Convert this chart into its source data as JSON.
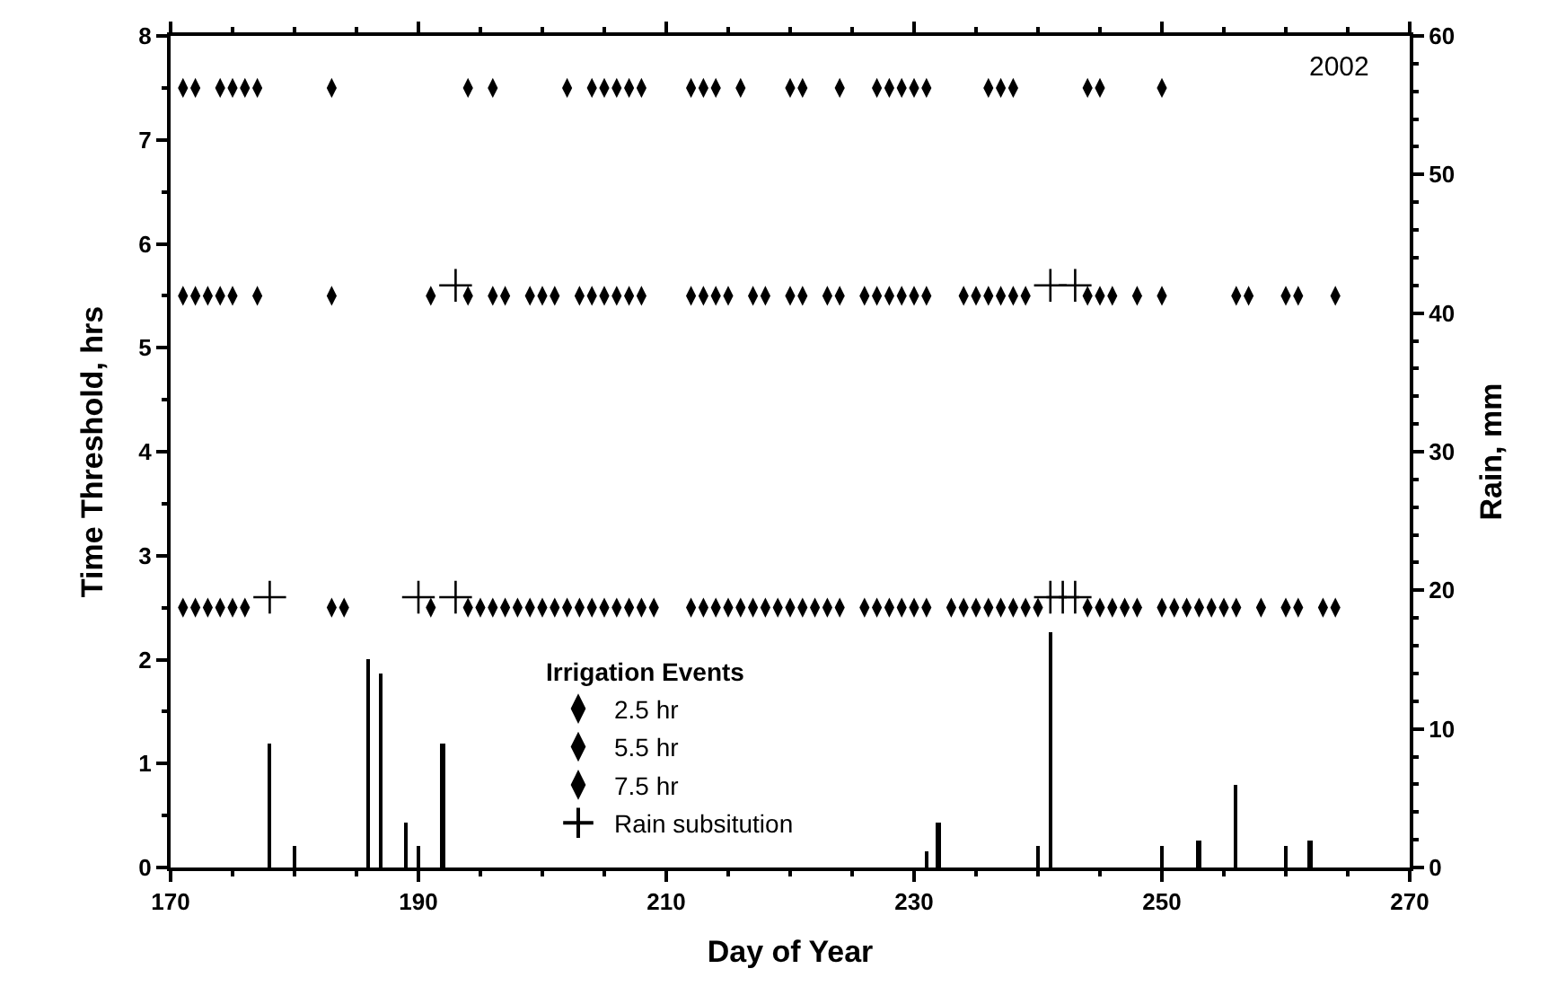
{
  "chart_data": {
    "type": "scatter",
    "xlabel": "Day of Year",
    "ylabel": "Time Threshold, hrs",
    "y2label": "Rain, mm",
    "legend_title": "Irrigation Events",
    "legend": "bottom",
    "xlim": [
      170,
      270
    ],
    "xticks": [
      170,
      190,
      210,
      230,
      250,
      270
    ],
    "ylim": [
      0,
      8
    ],
    "yticks": [
      0,
      1,
      2,
      3,
      4,
      5,
      6,
      7,
      8
    ],
    "y2lim": [
      0,
      60
    ],
    "y2ticks": [
      0,
      10,
      20,
      30,
      40,
      50,
      60
    ],
    "annotations": [
      "2002"
    ],
    "series": [
      {
        "name": "2.5 hr",
        "marker": "diamond",
        "color": "#000000",
        "x": [
          171,
          172,
          173,
          174,
          175,
          176,
          183,
          184,
          191,
          194,
          195,
          196,
          197,
          198,
          199,
          200,
          201,
          202,
          203,
          204,
          205,
          206,
          207,
          208,
          209,
          212,
          213,
          214,
          215,
          216,
          217,
          218,
          219,
          220,
          221,
          222,
          223,
          224,
          226,
          227,
          228,
          229,
          230,
          231,
          233,
          234,
          235,
          236,
          237,
          238,
          239,
          240,
          244,
          245,
          246,
          247,
          248,
          250,
          251,
          252,
          253,
          254,
          255,
          256,
          258,
          260,
          261,
          263,
          264
        ],
        "values": [
          2.5,
          2.5,
          2.5,
          2.5,
          2.5,
          2.5,
          2.5,
          2.5,
          2.5,
          2.5,
          2.5,
          2.5,
          2.5,
          2.5,
          2.5,
          2.5,
          2.5,
          2.5,
          2.5,
          2.5,
          2.5,
          2.5,
          2.5,
          2.5,
          2.5,
          2.5,
          2.5,
          2.5,
          2.5,
          2.5,
          2.5,
          2.5,
          2.5,
          2.5,
          2.5,
          2.5,
          2.5,
          2.5,
          2.5,
          2.5,
          2.5,
          2.5,
          2.5,
          2.5,
          2.5,
          2.5,
          2.5,
          2.5,
          2.5,
          2.5,
          2.5,
          2.5,
          2.5,
          2.5,
          2.5,
          2.5,
          2.5,
          2.5,
          2.5,
          2.5,
          2.5,
          2.5,
          2.5,
          2.5,
          2.5,
          2.5,
          2.5,
          2.5,
          2.5
        ]
      },
      {
        "name": "5.5 hr",
        "marker": "diamond",
        "color": "#000000",
        "x": [
          171,
          172,
          173,
          174,
          175,
          177,
          183,
          191,
          194,
          196,
          197,
          199,
          200,
          201,
          203,
          204,
          205,
          206,
          207,
          208,
          212,
          213,
          214,
          215,
          217,
          218,
          220,
          221,
          223,
          224,
          226,
          227,
          228,
          229,
          230,
          231,
          234,
          235,
          236,
          237,
          238,
          239,
          244,
          245,
          246,
          248,
          250,
          256,
          257,
          260,
          261,
          264
        ],
        "values": [
          5.5,
          5.5,
          5.5,
          5.5,
          5.5,
          5.5,
          5.5,
          5.5,
          5.5,
          5.5,
          5.5,
          5.5,
          5.5,
          5.5,
          5.5,
          5.5,
          5.5,
          5.5,
          5.5,
          5.5,
          5.5,
          5.5,
          5.5,
          5.5,
          5.5,
          5.5,
          5.5,
          5.5,
          5.5,
          5.5,
          5.5,
          5.5,
          5.5,
          5.5,
          5.5,
          5.5,
          5.5,
          5.5,
          5.5,
          5.5,
          5.5,
          5.5,
          5.5,
          5.5,
          5.5,
          5.5,
          5.5,
          5.5,
          5.5,
          5.5,
          5.5,
          5.5
        ]
      },
      {
        "name": "7.5 hr",
        "marker": "diamond",
        "color": "#000000",
        "x": [
          171,
          172,
          174,
          175,
          176,
          177,
          183,
          194,
          196,
          202,
          204,
          205,
          206,
          207,
          208,
          212,
          213,
          214,
          216,
          220,
          221,
          224,
          227,
          228,
          229,
          230,
          231,
          236,
          237,
          238,
          244,
          245,
          250
        ],
        "values": [
          7.5,
          7.5,
          7.5,
          7.5,
          7.5,
          7.5,
          7.5,
          7.5,
          7.5,
          7.5,
          7.5,
          7.5,
          7.5,
          7.5,
          7.5,
          7.5,
          7.5,
          7.5,
          7.5,
          7.5,
          7.5,
          7.5,
          7.5,
          7.5,
          7.5,
          7.5,
          7.5,
          7.5,
          7.5,
          7.5,
          7.5,
          7.5,
          7.5
        ]
      },
      {
        "name": "Rain subsitution",
        "marker": "cross",
        "color": "#000000",
        "x": [
          178,
          190,
          193,
          241,
          242,
          243,
          193,
          241,
          243
        ],
        "values": [
          2.6,
          2.6,
          2.6,
          2.6,
          2.6,
          2.6,
          5.6,
          5.6,
          5.6
        ]
      },
      {
        "type": "bar",
        "axis": "y2",
        "color": "#000000",
        "x": [
          178,
          180,
          186,
          187,
          189,
          190,
          192,
          231,
          232,
          240,
          241,
          250,
          253,
          256,
          260,
          262
        ],
        "values": [
          9,
          1.5,
          15,
          14,
          3.2,
          1.5,
          9,
          1.2,
          3.2,
          1.5,
          17,
          1.5,
          2,
          6,
          1.5,
          2
        ]
      }
    ]
  }
}
